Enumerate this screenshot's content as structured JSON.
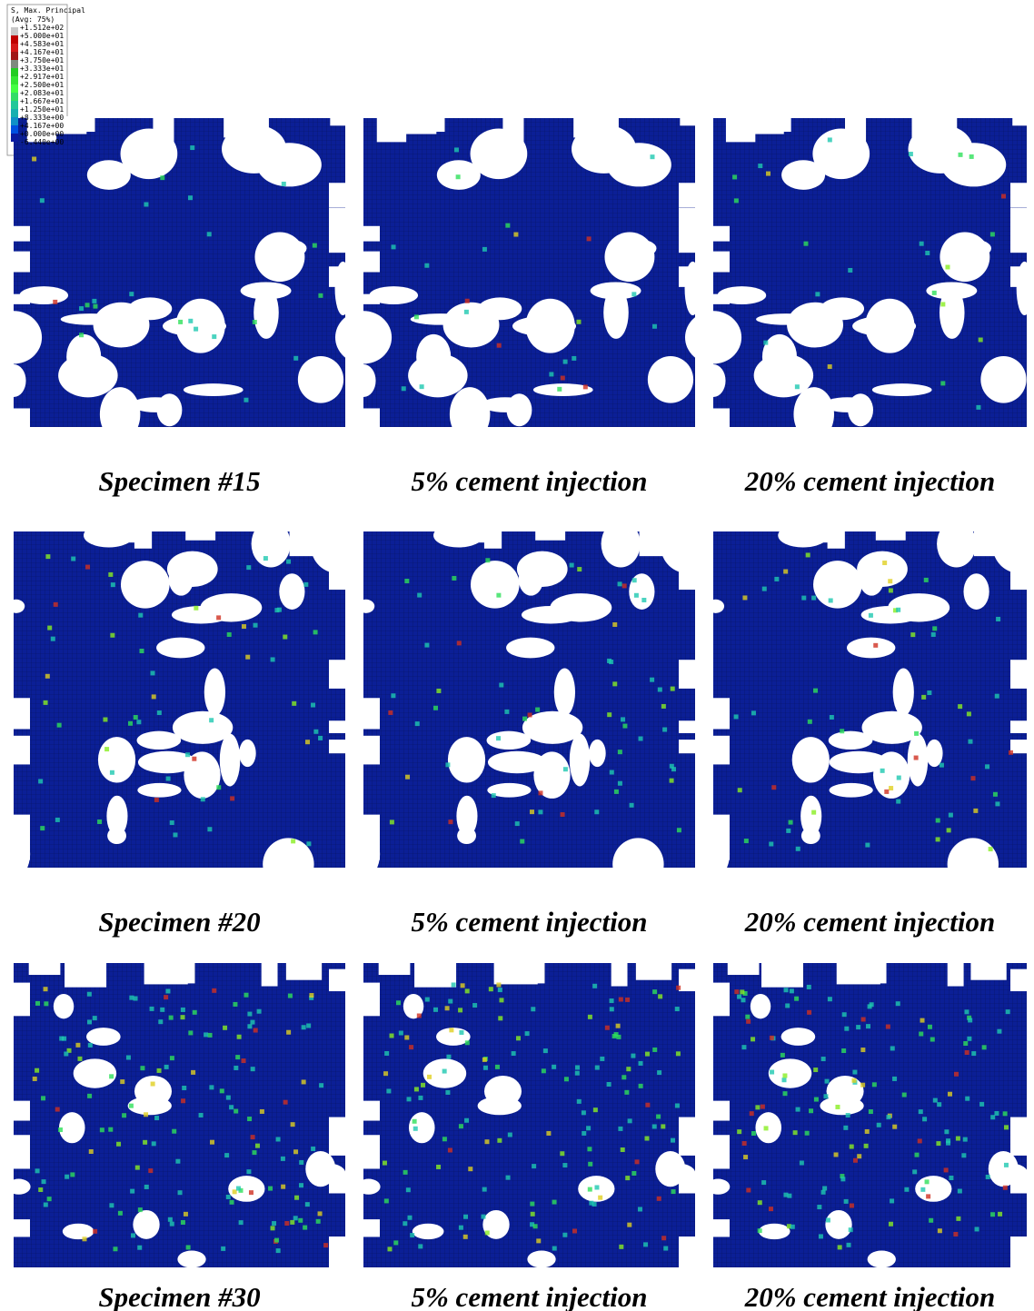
{
  "legend": {
    "title": "S, Max. Principal",
    "subtitle": "(Avg: 75%)",
    "labels": [
      "+1.512e+02",
      "+5.000e+01",
      "+4.583e+01",
      "+4.167e+01",
      "+3.750e+01",
      "+3.333e+01",
      "+2.917e+01",
      "+2.500e+01",
      "+2.083e+01",
      "+1.667e+01",
      "+1.250e+01",
      "+8.333e+00",
      "+4.167e+00",
      "+0.000e+00",
      "-6.440e+00"
    ],
    "colors": [
      "#c8c8c8",
      "#c00000",
      "#d41a1a",
      "#a01818",
      "#7f8a7f",
      "#22cc22",
      "#33e633",
      "#44ff44",
      "#33dd66",
      "#22c89a",
      "#18b0b0",
      "#1090c8",
      "#0050e0",
      "#0a1aa0"
    ]
  },
  "panels": [
    {
      "caption": "Specimen #15"
    },
    {
      "caption": "5% cement injection"
    },
    {
      "caption": "20% cement injection"
    },
    {
      "caption": "Specimen #20"
    },
    {
      "caption": "5% cement injection"
    },
    {
      "caption": "20% cement injection"
    },
    {
      "caption": "Specimen #30"
    },
    {
      "caption": "5% cement injection"
    },
    {
      "caption": "20% cement injection"
    }
  ]
}
